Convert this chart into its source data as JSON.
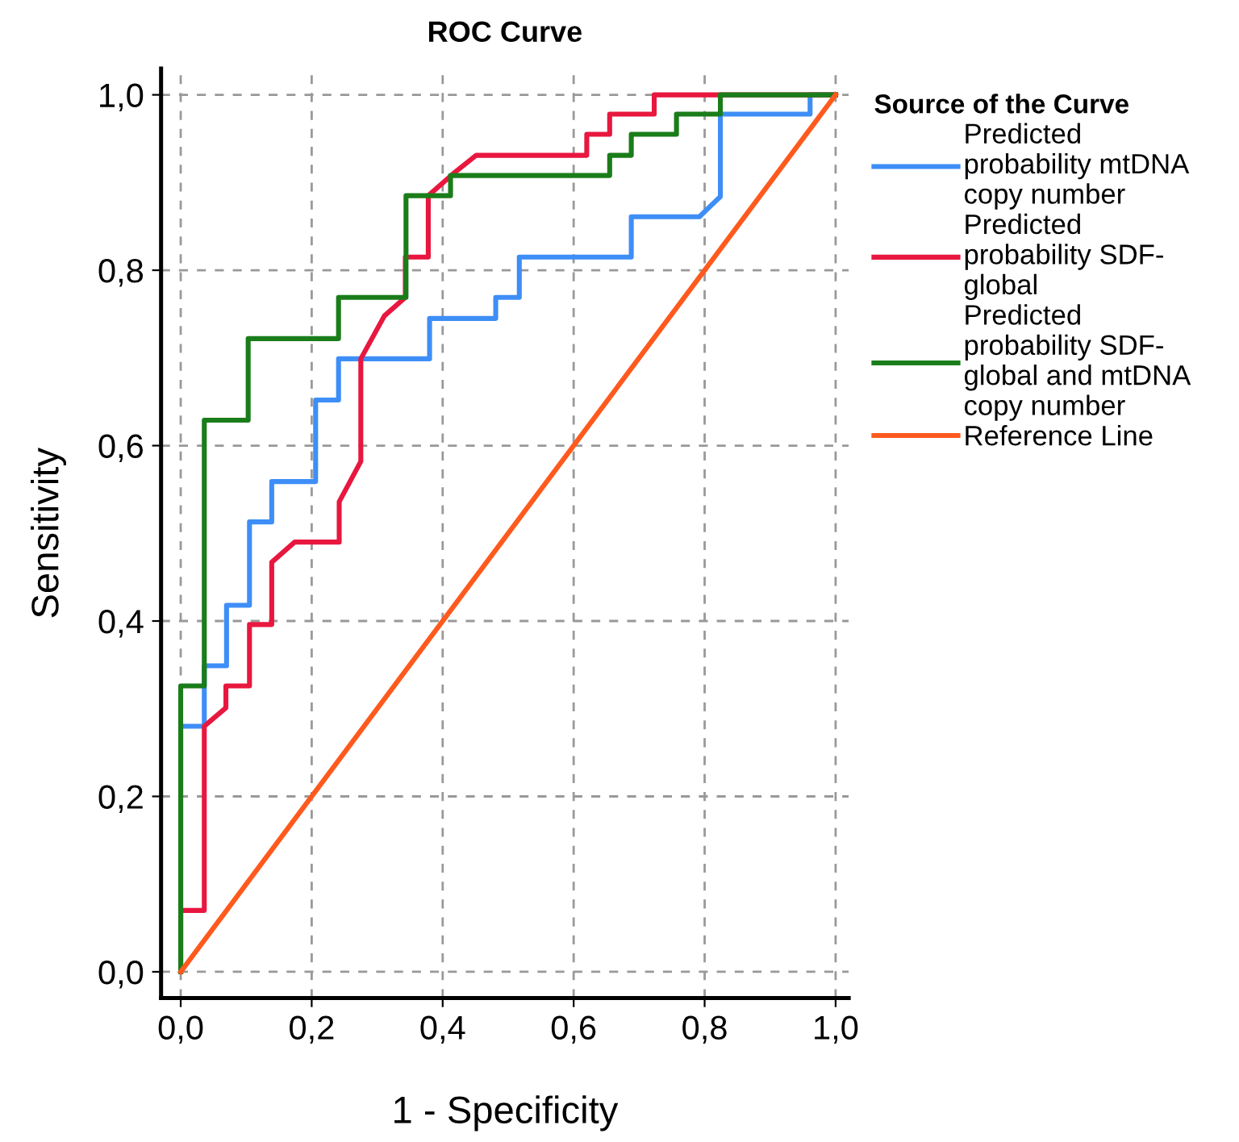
{
  "chart_data": {
    "type": "line",
    "title": "ROC Curve",
    "xlabel": "1 - Specificity",
    "ylabel": "Sensitivity",
    "legend_title": "Source of the Curve",
    "xlim": [
      -0.03,
      1.02
    ],
    "ylim": [
      -0.03,
      1.03
    ],
    "xticks": [
      {
        "value": 0,
        "label": "0,0"
      },
      {
        "value": 0.2,
        "label": "0,2"
      },
      {
        "value": 0.4,
        "label": "0,4"
      },
      {
        "value": 0.6,
        "label": "0,6"
      },
      {
        "value": 0.8,
        "label": "0,8"
      },
      {
        "value": 1,
        "label": "1,0"
      }
    ],
    "yticks": [
      {
        "value": 0,
        "label": "0,0"
      },
      {
        "value": 0.2,
        "label": "0,2"
      },
      {
        "value": 0.4,
        "label": "0,4"
      },
      {
        "value": 0.6,
        "label": "0,6"
      },
      {
        "value": 0.8,
        "label": "0,8"
      },
      {
        "value": 1,
        "label": "1,0"
      }
    ],
    "grid": true,
    "legend": "top right",
    "marker": "none",
    "line_style": "solid",
    "series": [
      {
        "name": "Predicted\nprobability mtDNA\ncopy number",
        "color": "#3e8ef7",
        "x": [
          0,
          0,
          0.036,
          0.036,
          0.07,
          0.07,
          0.105,
          0.105,
          0.139,
          0.139,
          0.206,
          0.206,
          0.241,
          0.241,
          0.38,
          0.38,
          0.481,
          0.481,
          0.517,
          0.517,
          0.688,
          0.688,
          0.792,
          0.824,
          0.824,
          0.961,
          0.961,
          1
        ],
        "values": [
          0,
          0.28,
          0.28,
          0.349,
          0.349,
          0.418,
          0.418,
          0.513,
          0.513,
          0.559,
          0.559,
          0.652,
          0.652,
          0.699,
          0.699,
          0.745,
          0.745,
          0.769,
          0.769,
          0.815,
          0.815,
          0.861,
          0.861,
          0.884,
          0.978,
          0.978,
          1,
          1
        ]
      },
      {
        "name": "Predicted\nprobability SDF-\nglobal",
        "color": "#e8173f",
        "x": [
          0,
          0,
          0.036,
          0.036,
          0.069,
          0.069,
          0.105,
          0.105,
          0.139,
          0.139,
          0.174,
          0.242,
          0.242,
          0.275,
          0.275,
          0.311,
          0.343,
          0.343,
          0.378,
          0.378,
          0.416,
          0.451,
          0.62,
          0.62,
          0.655,
          0.655,
          0.723,
          0.723,
          1
        ],
        "values": [
          0,
          0.07,
          0.07,
          0.28,
          0.301,
          0.326,
          0.326,
          0.396,
          0.396,
          0.467,
          0.49,
          0.49,
          0.536,
          0.582,
          0.699,
          0.748,
          0.769,
          0.815,
          0.815,
          0.885,
          0.91,
          0.931,
          0.931,
          0.955,
          0.955,
          0.978,
          0.978,
          1,
          1
        ]
      },
      {
        "name": "Predicted\nprobability SDF-\nglobal and mtDNA\ncopy number",
        "color": "#1a7d1a",
        "x": [
          0,
          0,
          0.036,
          0.036,
          0.103,
          0.103,
          0.241,
          0.241,
          0.344,
          0.344,
          0.412,
          0.412,
          0.655,
          0.655,
          0.688,
          0.688,
          0.757,
          0.757,
          0.824,
          0.824,
          1
        ],
        "values": [
          0,
          0.326,
          0.326,
          0.629,
          0.629,
          0.722,
          0.722,
          0.769,
          0.769,
          0.885,
          0.885,
          0.908,
          0.908,
          0.931,
          0.931,
          0.955,
          0.955,
          0.978,
          0.978,
          1,
          1
        ]
      },
      {
        "name": "Reference Line",
        "color": "#ff5a1e",
        "x": [
          0,
          1
        ],
        "values": [
          0,
          1
        ]
      }
    ]
  }
}
